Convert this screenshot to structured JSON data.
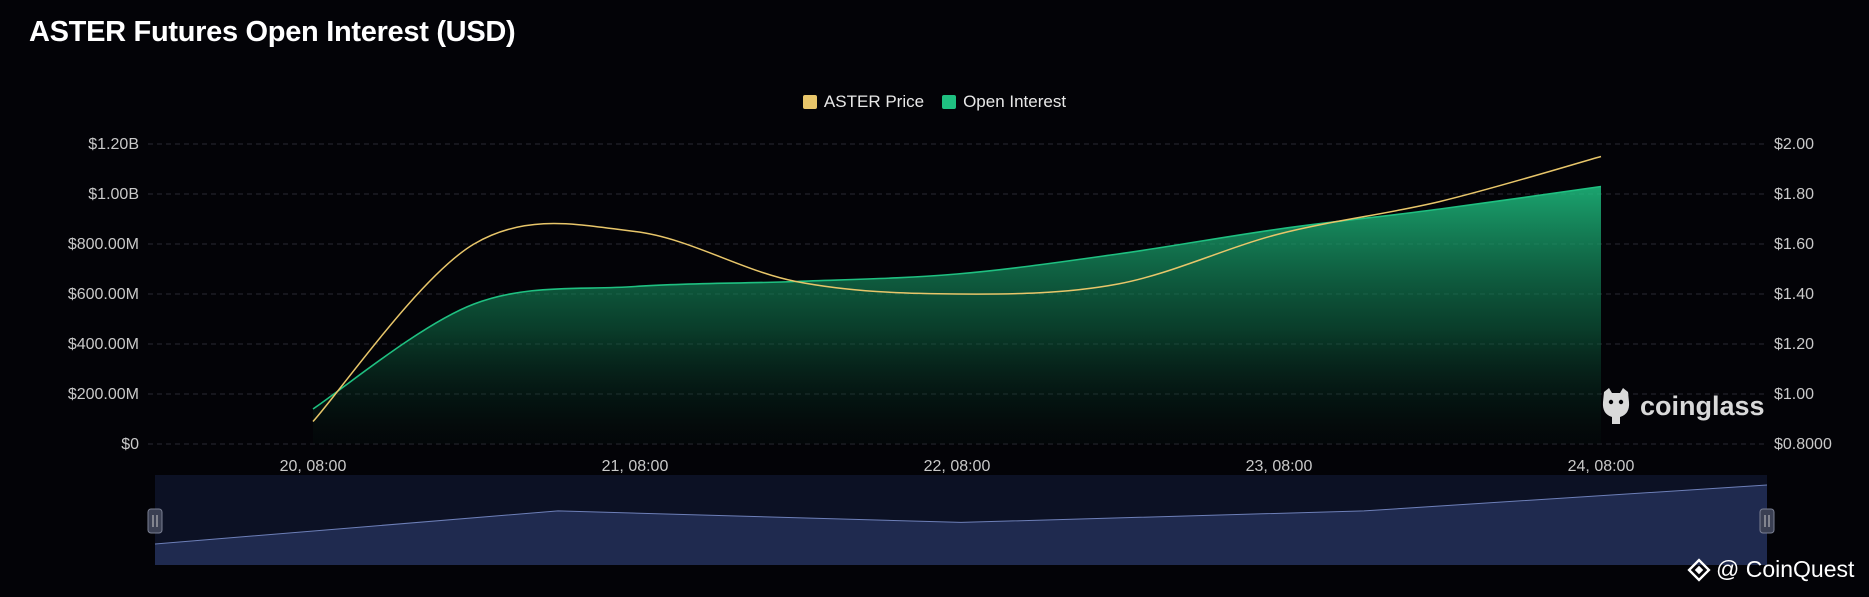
{
  "page_title": "ASTER Futures Open Interest (USD)",
  "watermark_text": "coinglass",
  "credit_text": "@ CoinQuest",
  "colors": {
    "background": "#030307",
    "price_line": "#e8c66a",
    "open_interest": "#1fc081",
    "navigator_fill": "#1f2a4f",
    "grid": "#2a2a33"
  },
  "chart_data": {
    "type": "area",
    "title": "ASTER Futures Open Interest (USD)",
    "legend_position": "top-center",
    "grid": true,
    "x": [
      "20, 08:00",
      "20, 20:00",
      "21, 08:00",
      "21, 20:00",
      "22, 08:00",
      "22, 20:00",
      "23, 08:00",
      "23, 20:00",
      "24, 08:00"
    ],
    "x_tick_labels": [
      "20, 08:00",
      "21, 08:00",
      "22, 08:00",
      "23, 08:00",
      "24, 08:00"
    ],
    "left_axis": {
      "ticks": [
        "$0",
        "$200.00M",
        "$400.00M",
        "$600.00M",
        "$800.00M",
        "$1.00B",
        "$1.20B"
      ],
      "ylim": [
        0,
        1200000000
      ]
    },
    "right_axis": {
      "ticks": [
        "$0.8000",
        "$1.00",
        "$1.20",
        "$1.40",
        "$1.60",
        "$1.80",
        "$2.00"
      ],
      "ylim": [
        0.8,
        2.0
      ]
    },
    "series": [
      {
        "name": "ASTER Price",
        "axis": "right",
        "type": "line",
        "values": [
          0.89,
          1.6,
          1.65,
          1.45,
          1.4,
          1.44,
          1.64,
          1.77,
          1.95
        ]
      },
      {
        "name": "Open Interest",
        "axis": "left",
        "type": "area",
        "values": [
          140000000,
          560000000,
          630000000,
          650000000,
          680000000,
          760000000,
          860000000,
          940000000,
          1030000000
        ]
      }
    ],
    "navigator": {
      "values": [
        0.18,
        0.64,
        0.48,
        0.64,
        1.0
      ]
    }
  }
}
